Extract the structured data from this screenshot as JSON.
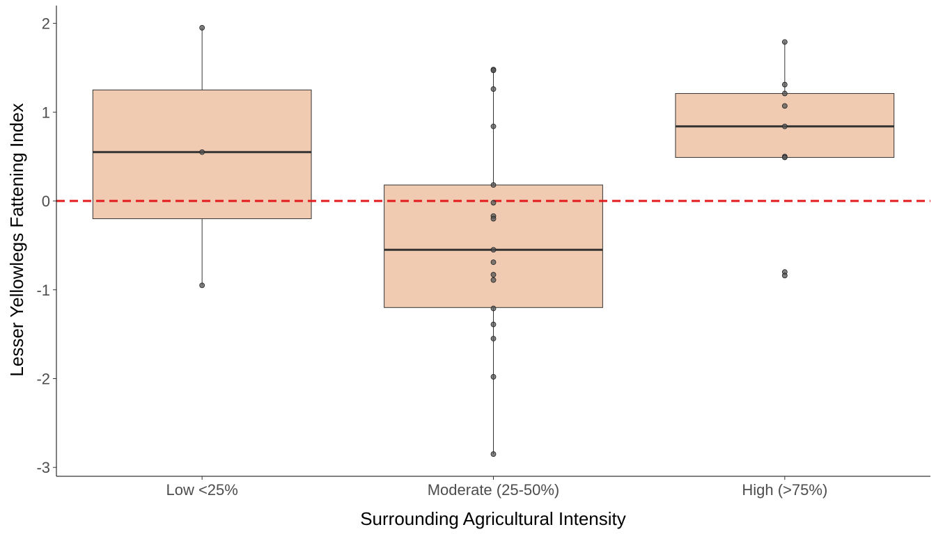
{
  "chart_data": {
    "type": "boxplot",
    "title": "",
    "xlabel": "Surrounding Agricultural Intensity",
    "ylabel": "Lesser Yellowlegs Fattening Index",
    "categories": [
      "Low <25%",
      "Moderate (25-50%)",
      "High (>75%)"
    ],
    "ylim": [
      -3.1,
      2.2
    ],
    "yticks": [
      -3,
      -2,
      -1,
      0,
      1,
      2
    ],
    "ytick_labels": [
      "-3",
      "-2",
      "-1",
      "0",
      "1",
      "2"
    ],
    "grid": false,
    "legend": "none",
    "reference_line": {
      "y": 0,
      "style": "dashed",
      "color": "#e31a1c"
    },
    "box_fill": "#f0cbb2",
    "point_color": "#555555",
    "boxes": [
      {
        "category": "Low <25%",
        "whisker_low": -0.95,
        "q1": -0.2,
        "median": 0.55,
        "q3": 1.25,
        "whisker_high": 1.95,
        "points": [
          1.95,
          0.55,
          -0.95
        ]
      },
      {
        "category": "Moderate (25-50%)",
        "whisker_low": -2.85,
        "q1": -1.2,
        "median": -0.55,
        "q3": 0.18,
        "whisker_high": 1.48,
        "points": [
          1.48,
          1.47,
          1.26,
          0.84,
          0.18,
          -0.02,
          -0.17,
          -0.2,
          -0.55,
          -0.69,
          -0.83,
          -0.89,
          -1.21,
          -1.39,
          -1.55,
          -1.98,
          -2.85
        ]
      },
      {
        "category": "High (>75%)",
        "whisker_low": 0.49,
        "q1": 0.49,
        "median": 0.84,
        "q3": 1.21,
        "whisker_high": 1.79,
        "points": [
          1.79,
          1.31,
          1.21,
          1.07,
          0.84,
          0.5,
          0.49,
          -0.8,
          -0.84
        ]
      }
    ]
  }
}
